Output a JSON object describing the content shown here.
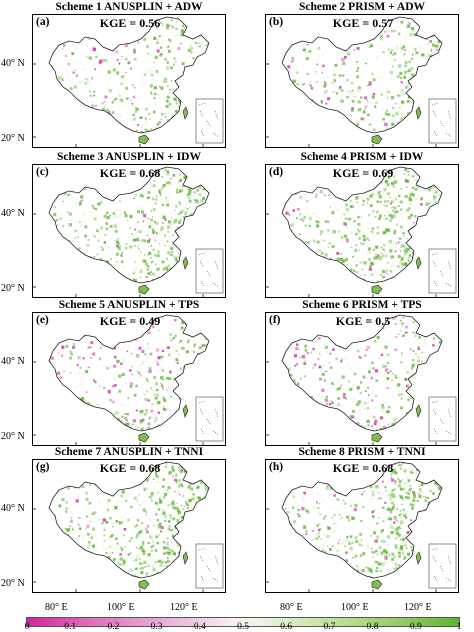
{
  "panels": [
    {
      "scheme": "Scheme 1  ANUSPLIN + ADW",
      "label": "(a)",
      "kge": "KGE = 0.56",
      "green": 0.45,
      "pink": 0.22
    },
    {
      "scheme": "Scheme 2   PRISM + ADW",
      "label": "(b)",
      "kge": "KGE = 0.57",
      "green": 0.46,
      "pink": 0.22
    },
    {
      "scheme": "Scheme 3  ANUSPLIN + IDW",
      "label": "(c)",
      "kge": "KGE = 0.68",
      "green": 0.75,
      "pink": 0.12
    },
    {
      "scheme": "Scheme 4   PRISM + IDW",
      "label": "(d)",
      "kge": "KGE = 0.69",
      "green": 0.76,
      "pink": 0.12
    },
    {
      "scheme": "Scheme 5  ANUSPLIN + TPS",
      "label": "(e)",
      "kge": "KGE = 0.49",
      "green": 0.32,
      "pink": 0.4
    },
    {
      "scheme": "Scheme 6   PRISM + TPS",
      "label": "(f)",
      "kge": "KGE = 0.5",
      "green": 0.33,
      "pink": 0.38
    },
    {
      "scheme": "Scheme 7  ANUSPLIN + TNNI",
      "label": "(g)",
      "kge": "KGE = 0.68",
      "green": 0.76,
      "pink": 0.12
    },
    {
      "scheme": "Scheme 8   PRISM + TNNI",
      "label": "(h)",
      "kge": "KGE = 0.68",
      "green": 0.75,
      "pink": 0.12
    }
  ],
  "lat_labels": {
    "north40": "40° N",
    "north20": "20° N"
  },
  "lon_labels": [
    "80° E",
    "100° E",
    "120° E",
    "80° E",
    "100° E",
    "120° E"
  ],
  "colorbar": {
    "ticks": [
      "0",
      "0.1",
      "0.2",
      "0.3",
      "0.4",
      "0.5",
      "0.6",
      "0.7",
      "0.8",
      "0.9",
      "1"
    ],
    "colors": {
      "low": "#d1249f",
      "mid": "#f4f2ee",
      "high": "#5cb32e"
    }
  }
}
